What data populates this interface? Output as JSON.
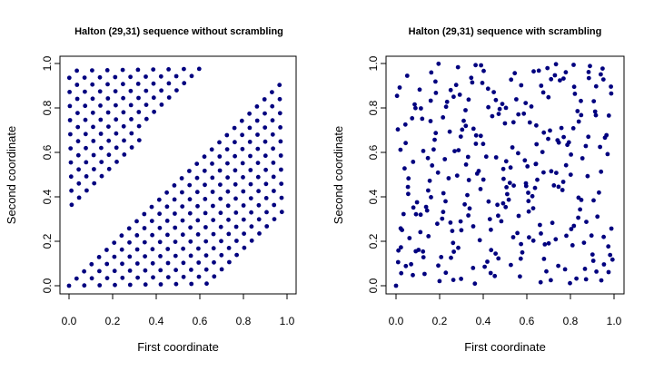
{
  "chart_data": [
    {
      "type": "scatter",
      "title": "Halton (29,31) sequence without scrambling",
      "xlabel": "First coordinate",
      "ylabel": "Second coordinate",
      "xlim": [
        -0.04,
        1.04
      ],
      "ylim": [
        -0.04,
        1.04
      ],
      "x_ticks": [
        "0.0",
        "0.2",
        "0.4",
        "0.6",
        "0.8",
        "1.0"
      ],
      "y_ticks": [
        "0.0",
        "0.2",
        "0.4",
        "0.6",
        "0.8",
        "1.0"
      ],
      "grid": false,
      "marker_color": "#00007F",
      "series": [
        {
          "generator": {
            "kind": "halton",
            "bases": [
              29,
              31
            ],
            "scramble": false,
            "n": 300
          }
        }
      ]
    },
    {
      "type": "scatter",
      "title": "Halton (29,31) sequence with scrambling",
      "xlabel": "First coordinate",
      "ylabel": "Second coordinate",
      "xlim": [
        -0.04,
        1.04
      ],
      "ylim": [
        -0.04,
        1.04
      ],
      "x_ticks": [
        "0.0",
        "0.2",
        "0.4",
        "0.6",
        "0.8",
        "1.0"
      ],
      "y_ticks": [
        "0.0",
        "0.2",
        "0.4",
        "0.6",
        "0.8",
        "1.0"
      ],
      "grid": false,
      "marker_color": "#00007F",
      "series": [
        {
          "generator": {
            "kind": "halton",
            "bases": [
              29,
              31
            ],
            "scramble": true,
            "n": 300
          }
        }
      ]
    }
  ]
}
